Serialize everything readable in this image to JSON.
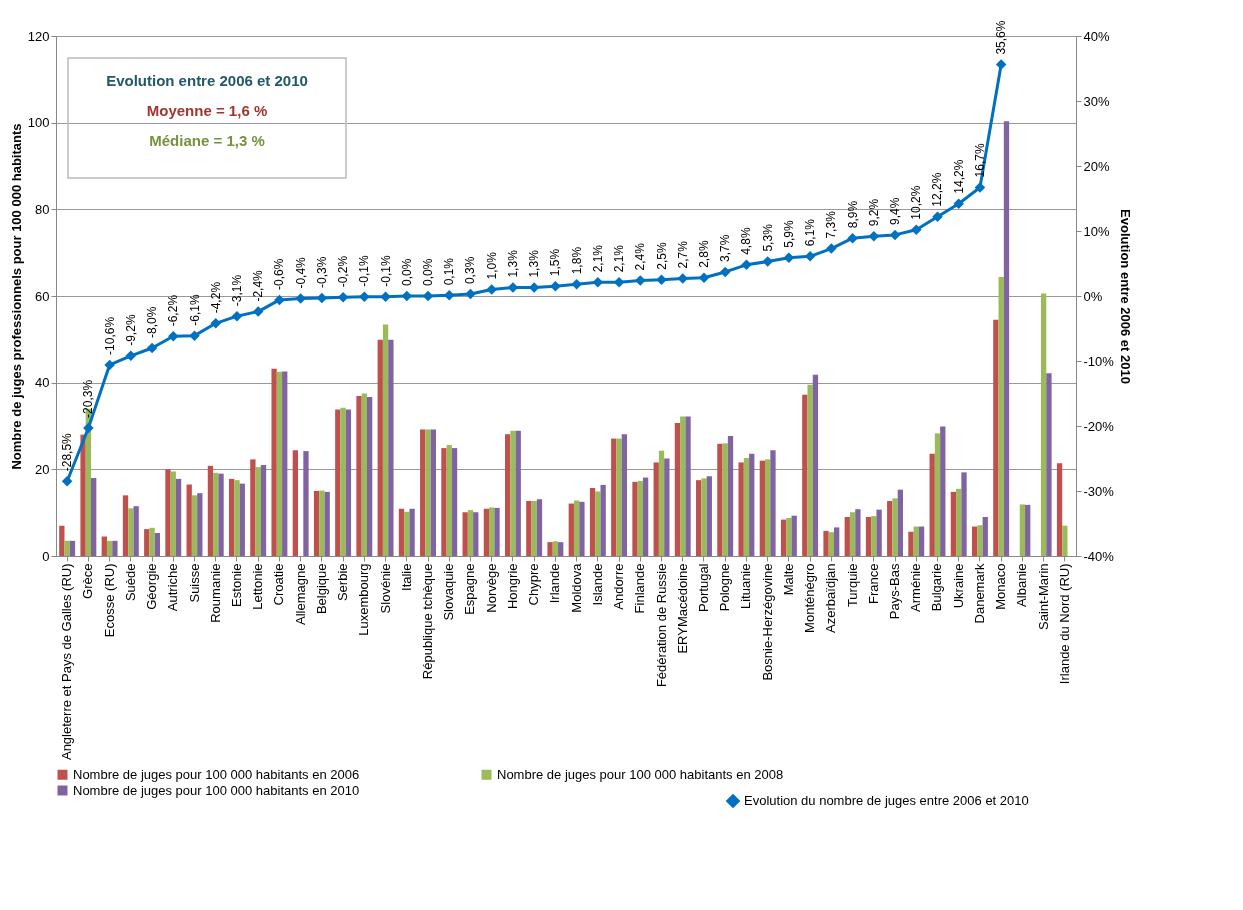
{
  "chart_data": {
    "type": "bar",
    "ylabel": "Nombre de juges professionnels pour 100 000 habitants",
    "y2label": "Evolution entre 2006 et 2010",
    "annotations": [
      "Evolution entre 2006 et 2010",
      "Moyenne = 1,6 %",
      "Médiane = 1,3 %"
    ],
    "categories": [
      "Angleterre et Pays de Galles (RU)",
      "Grèce",
      "Ecosse (RU)",
      "Suède",
      "Géorgie",
      "Autriche",
      "Suisse",
      "Roumanie",
      "Estonie",
      "Lettonie",
      "Croatie",
      "Allemagne",
      "Belgique",
      "Serbie",
      "Luxembourg",
      "Slovénie",
      "Italie",
      "République tchèque",
      "Slovaquie",
      "Espagne",
      "Norvège",
      "Hongrie",
      "Chypre",
      "Irlande",
      "Moldova",
      "Islande",
      "Andorre",
      "Finlande",
      "Fédération de Russie",
      "ERYMacédoine",
      "Portugal",
      "Pologne",
      "Lituanie",
      "Bosnie-Herzégovine",
      "Malte",
      "Monténégro",
      "Azerbaïdjan",
      "Turquie",
      "France",
      "Pays-Bas",
      "Arménie",
      "Bulgarie",
      "Ukraine",
      "Danemark",
      "Monaco",
      "Albanie",
      "Saint-Marin",
      "Irlande du Nord (RU)"
    ],
    "series": [
      {
        "name": "Nombre de juges pour 100 000 habitants en 2006",
        "color": "#c0504d",
        "values": [
          7.0,
          28.0,
          4.5,
          14.0,
          6.2,
          20.0,
          16.5,
          20.8,
          17.8,
          22.3,
          43.2,
          24.4,
          15.0,
          33.8,
          36.9,
          49.9,
          10.9,
          29.2,
          24.9,
          10.1,
          10.9,
          28.1,
          12.7,
          3.2,
          12.1,
          15.7,
          27.1,
          17.1,
          21.6,
          30.7,
          17.5,
          25.9,
          21.6,
          22.0,
          8.4,
          37.2,
          5.8,
          9.0,
          9.0,
          12.7,
          5.6,
          23.6,
          14.8,
          6.8,
          54.5,
          null,
          null,
          21.4
        ]
      },
      {
        "name": "Nombre de juges pour 100 000 habitants en 2008",
        "color": "#9bbb59",
        "values": [
          3.5,
          34.0,
          3.5,
          11.0,
          6.5,
          19.5,
          14.0,
          19.2,
          17.5,
          20.5,
          42.5,
          null,
          15.1,
          34.2,
          37.5,
          53.4,
          10.2,
          29.2,
          25.6,
          10.6,
          11.2,
          28.9,
          12.7,
          3.4,
          12.8,
          14.9,
          27.1,
          17.3,
          24.3,
          32.2,
          17.9,
          26.0,
          22.6,
          22.3,
          8.8,
          39.5,
          5.5,
          10.1,
          9.2,
          13.3,
          6.8,
          28.3,
          15.5,
          7.1,
          64.4,
          11.9,
          60.6,
          7.0
        ]
      },
      {
        "name": "Nombre de juges pour 100 000 habitants en 2010",
        "color": "#8064a2",
        "values": [
          3.5,
          18.0,
          3.5,
          11.5,
          5.3,
          17.8,
          14.5,
          19.0,
          16.7,
          21.0,
          42.6,
          24.2,
          14.8,
          33.8,
          36.7,
          49.9,
          10.9,
          29.2,
          24.9,
          10.1,
          11.1,
          28.9,
          13.1,
          3.2,
          12.5,
          16.4,
          28.1,
          18.1,
          22.5,
          32.2,
          18.4,
          27.7,
          23.6,
          24.4,
          9.3,
          41.8,
          6.6,
          10.8,
          10.7,
          15.3,
          6.8,
          29.9,
          19.3,
          9.0,
          100.3,
          11.8,
          42.2,
          null
        ]
      },
      {
        "name": "Evolution du nombre de juges entre 2006 et 2010",
        "color": "#0070c0",
        "type": "line",
        "axis": "y2",
        "marker": "diamond",
        "values": [
          -28.5,
          -20.3,
          -10.6,
          -9.2,
          -8.0,
          -6.2,
          -6.1,
          -4.2,
          -3.1,
          -2.4,
          -0.6,
          -0.4,
          -0.3,
          -0.2,
          -0.1,
          -0.1,
          0.0,
          0.0,
          0.1,
          0.3,
          1.0,
          1.3,
          1.3,
          1.5,
          1.8,
          2.1,
          2.1,
          2.4,
          2.5,
          2.7,
          2.8,
          3.7,
          4.8,
          5.3,
          5.9,
          6.1,
          7.3,
          8.9,
          9.2,
          9.4,
          10.2,
          12.2,
          14.2,
          16.7,
          35.6,
          null,
          null,
          null
        ],
        "value_labels": [
          "-28,5%",
          "-20,3%",
          "-10,6%",
          "-9,2%",
          "-8,0%",
          "-6,2%",
          "-6,1%",
          "-4,2%",
          "-3,1%",
          "-2,4%",
          "-0,6%",
          "-0,4%",
          "-0,3%",
          "-0,2%",
          "-0,1%",
          "-0,1%",
          "0,0%",
          "0,0%",
          "0,1%",
          "0,3%",
          "1,0%",
          "1,3%",
          "1,3%",
          "1,5%",
          "1,8%",
          "2,1%",
          "2,1%",
          "2,4%",
          "2,5%",
          "2,7%",
          "2,8%",
          "3,7%",
          "4,8%",
          "5,3%",
          "5,9%",
          "6,1%",
          "7,3%",
          "8,9%",
          "9,2%",
          "9,4%",
          "10,2%",
          "12,2%",
          "14,2%",
          "16,7%",
          "35,6%",
          null,
          null,
          null
        ]
      }
    ],
    "ylim": [
      0,
      120
    ],
    "yticks": [
      0,
      20,
      40,
      60,
      80,
      100,
      120
    ],
    "y2lim": [
      -40,
      40
    ],
    "y2ticks": [
      {
        "value": -40,
        "label": "-40%"
      },
      {
        "value": -30,
        "label": "-30%"
      },
      {
        "value": -20,
        "label": "-20%"
      },
      {
        "value": -10,
        "label": "-10%"
      },
      {
        "value": 0,
        "label": "0%"
      },
      {
        "value": 10,
        "label": "10%"
      },
      {
        "value": 20,
        "label": "20%"
      },
      {
        "value": 30,
        "label": "30%"
      },
      {
        "value": 40,
        "label": "40%"
      }
    ],
    "grid": "y",
    "legend": "bottom"
  }
}
